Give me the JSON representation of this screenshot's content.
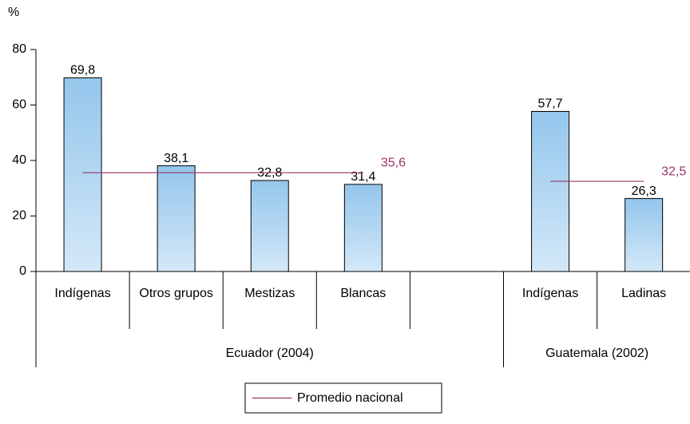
{
  "chart_data": {
    "type": "bar",
    "y_axis_label": "%",
    "categories": [
      "Indígenas",
      "Otros grupos",
      "Mestizas",
      "Blancas",
      null,
      "Indígenas",
      "Ladinas"
    ],
    "values": [
      69.8,
      38.1,
      32.8,
      31.4,
      null,
      57.7,
      26.3
    ],
    "value_labels": [
      "69,8",
      "38,1",
      "32,8",
      "31,4",
      null,
      "57,7",
      "26,3"
    ],
    "color": "#a9d2f2",
    "groups": [
      {
        "name": "Ecuador (2004)",
        "size": 5
      },
      {
        "name": "Guatemala (2002)",
        "size": 2
      }
    ],
    "reference_series": {
      "name": "Promedio nacional",
      "color": "#993366",
      "values": [
        35.6,
        32.5
      ],
      "value_labels": [
        "35,6",
        "32,5"
      ]
    },
    "ylim": [
      0,
      80
    ],
    "yticks": [
      0,
      20,
      40,
      60,
      80
    ],
    "grid": false,
    "legend": "bottom"
  }
}
